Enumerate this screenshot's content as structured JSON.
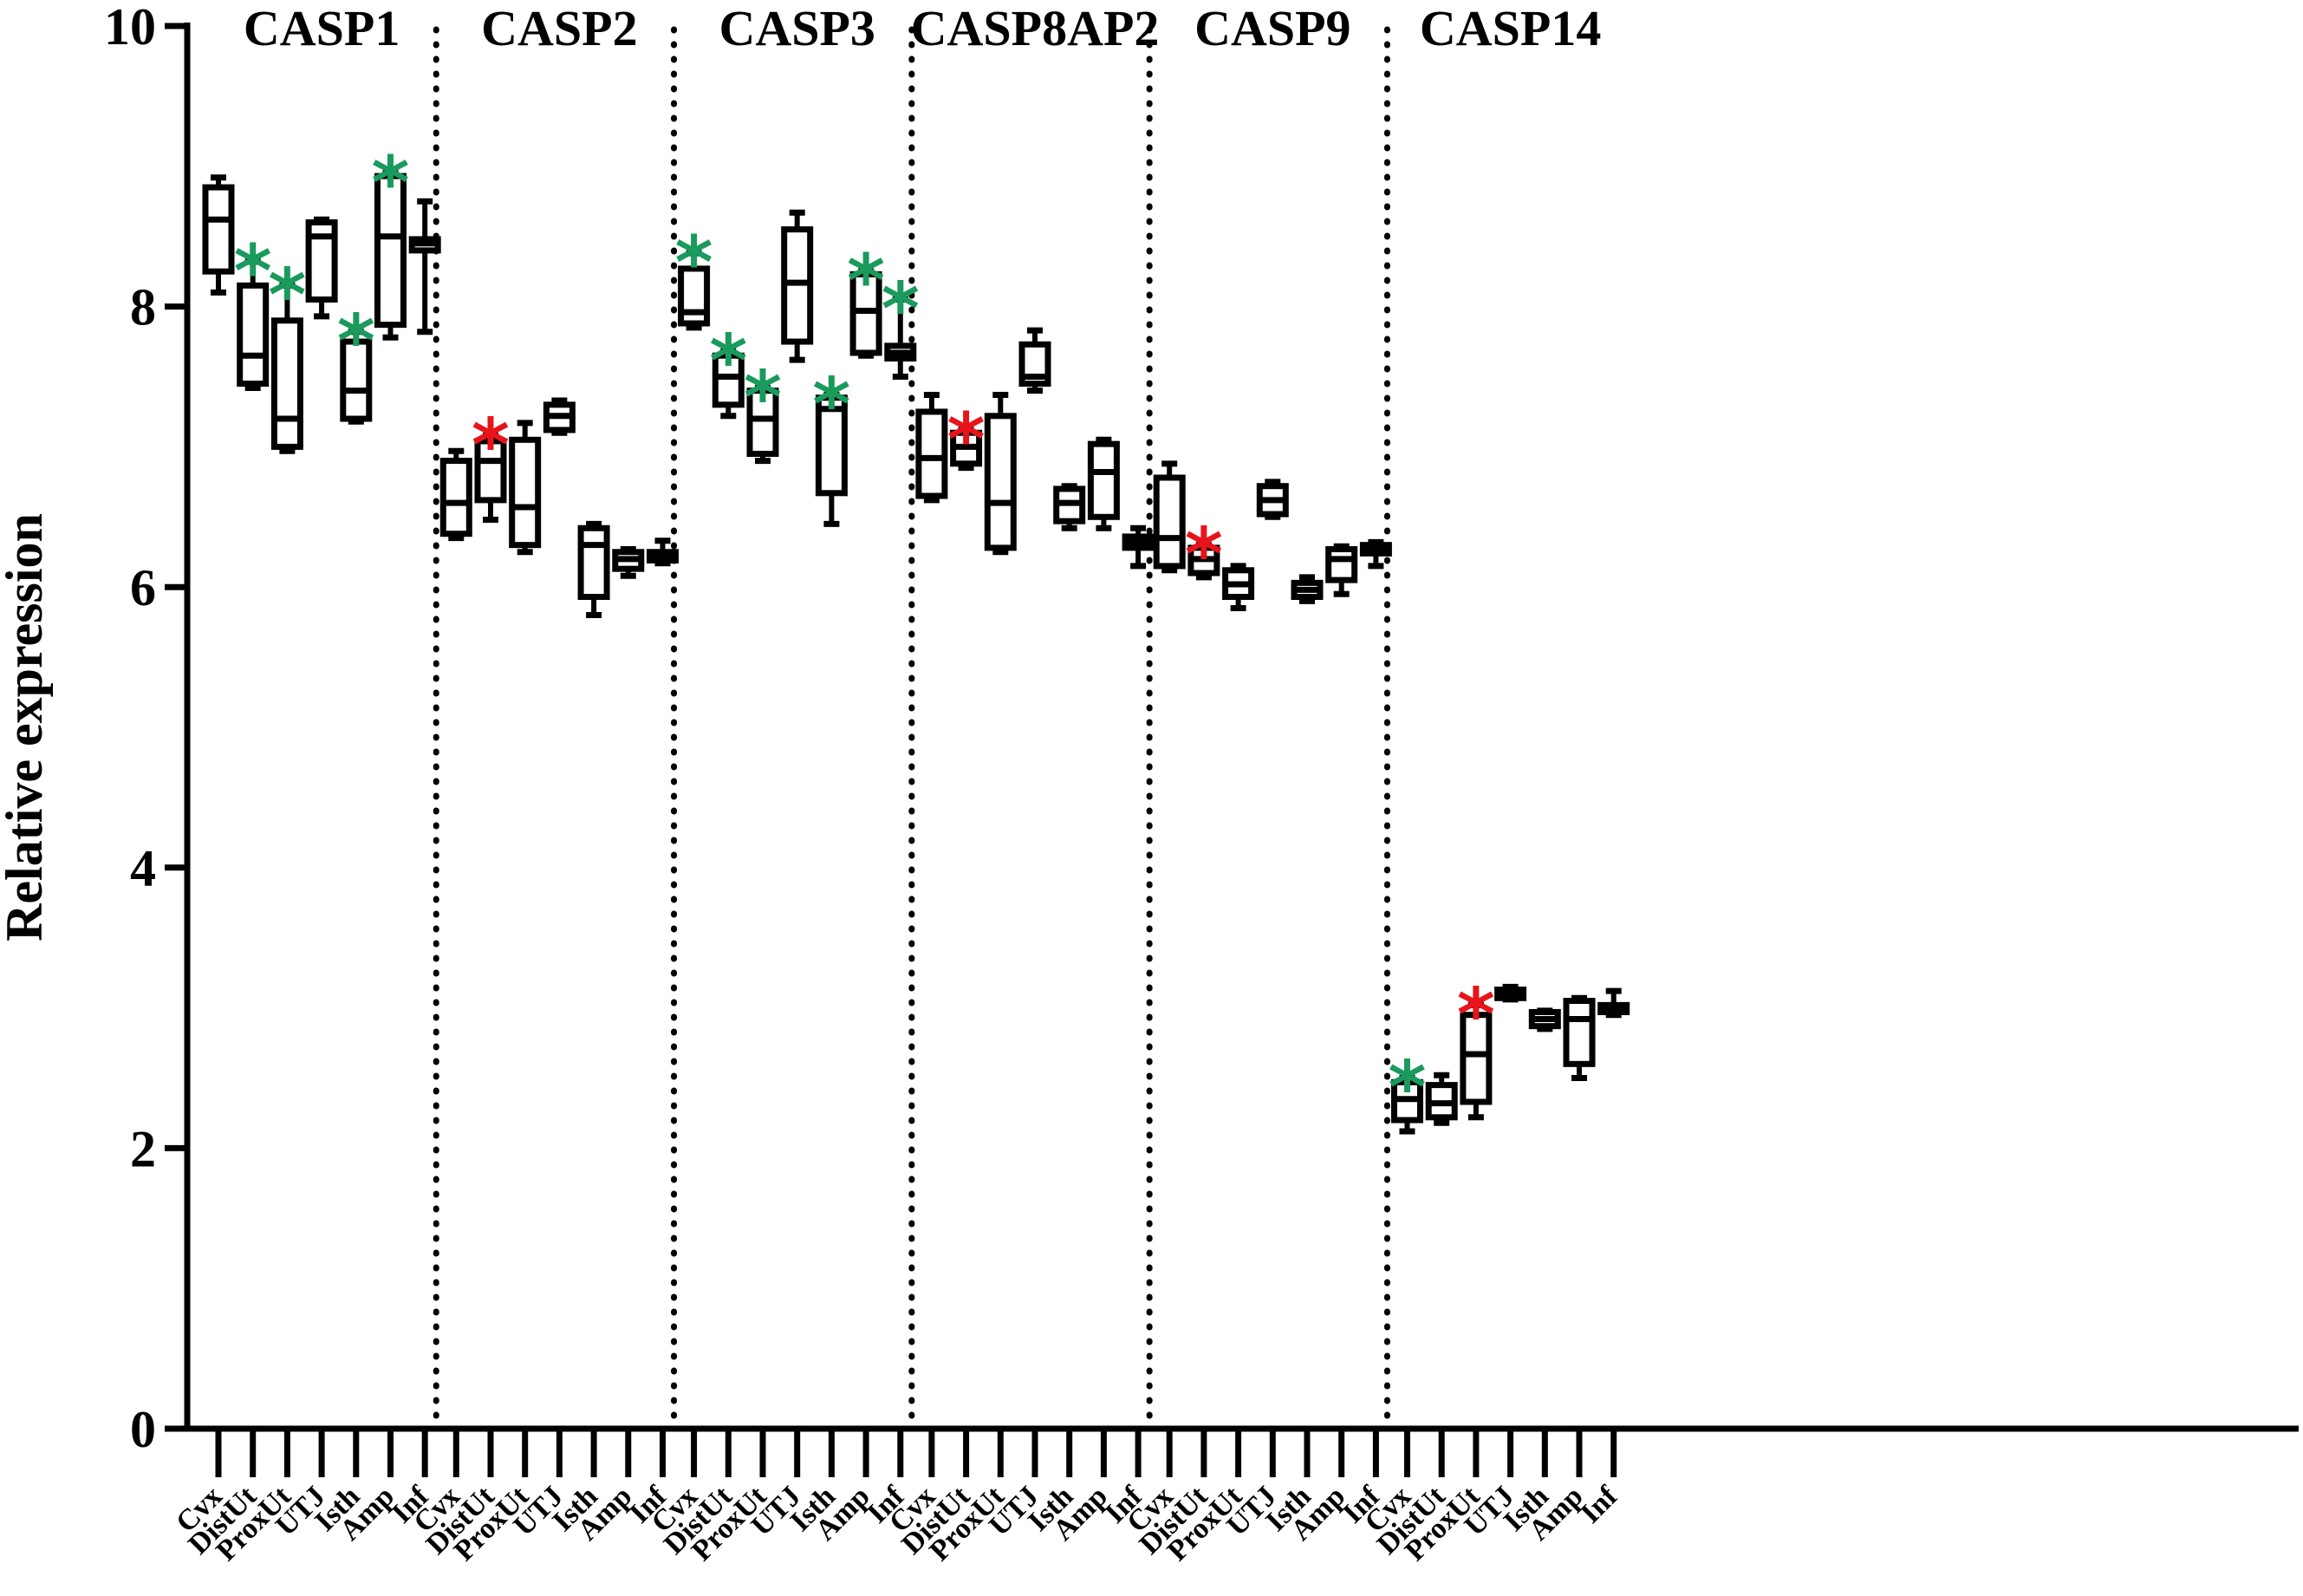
{
  "chart_data": {
    "type": "box",
    "ylabel": "Relative expression",
    "ylim": [
      0,
      10
    ],
    "yticks": [
      0,
      2,
      4,
      6,
      8,
      10
    ],
    "grid": false,
    "categories": [
      "Cvx",
      "DistUt",
      "ProxUt",
      "UTJ",
      "Isth",
      "Amp",
      "Inf"
    ],
    "colors": {
      "axis": "#000000",
      "green_star": "#1a9a5c",
      "red_star": "#e8141b"
    },
    "groups": [
      {
        "name": "CASP1",
        "boxes": [
          {
            "min": 8.1,
            "q1": 8.25,
            "median": 8.62,
            "q3": 8.85,
            "max": 8.92,
            "sig": ""
          },
          {
            "min": 7.42,
            "q1": 7.45,
            "median": 7.65,
            "q3": 8.15,
            "max": 8.32,
            "sig": "green"
          },
          {
            "min": 6.97,
            "q1": 7.0,
            "median": 7.2,
            "q3": 7.9,
            "max": 8.15,
            "sig": "green"
          },
          {
            "min": 7.93,
            "q1": 8.05,
            "median": 8.5,
            "q3": 8.6,
            "max": 8.62,
            "sig": ""
          },
          {
            "min": 7.18,
            "q1": 7.2,
            "median": 7.4,
            "q3": 7.75,
            "max": 7.82,
            "sig": "green"
          },
          {
            "min": 7.78,
            "q1": 7.87,
            "median": 8.5,
            "q3": 8.93,
            "max": 8.95,
            "sig": "green"
          },
          {
            "min": 7.82,
            "q1": 8.4,
            "median": 8.45,
            "q3": 8.48,
            "max": 8.75,
            "sig": ""
          }
        ]
      },
      {
        "name": "CASP2",
        "boxes": [
          {
            "min": 6.35,
            "q1": 6.38,
            "median": 6.6,
            "q3": 6.9,
            "max": 6.97,
            "sig": ""
          },
          {
            "min": 6.48,
            "q1": 6.62,
            "median": 6.9,
            "q3": 7.04,
            "max": 7.08,
            "sig": "red"
          },
          {
            "min": 6.25,
            "q1": 6.3,
            "median": 6.57,
            "q3": 7.05,
            "max": 7.17,
            "sig": ""
          },
          {
            "min": 7.1,
            "q1": 7.12,
            "median": 7.22,
            "q3": 7.3,
            "max": 7.33,
            "sig": ""
          },
          {
            "min": 5.8,
            "q1": 5.93,
            "median": 6.3,
            "q3": 6.42,
            "max": 6.45,
            "sig": ""
          },
          {
            "min": 6.08,
            "q1": 6.13,
            "median": 6.2,
            "q3": 6.25,
            "max": 6.27,
            "sig": ""
          },
          {
            "min": 6.17,
            "q1": 6.19,
            "median": 6.22,
            "q3": 6.25,
            "max": 6.33,
            "sig": ""
          }
        ]
      },
      {
        "name": "CASP3",
        "boxes": [
          {
            "min": 7.85,
            "q1": 7.88,
            "median": 7.96,
            "q3": 8.27,
            "max": 8.38,
            "sig": "green"
          },
          {
            "min": 7.22,
            "q1": 7.3,
            "median": 7.5,
            "q3": 7.65,
            "max": 7.68,
            "sig": "green"
          },
          {
            "min": 6.9,
            "q1": 6.95,
            "median": 7.2,
            "q3": 7.4,
            "max": 7.42,
            "sig": "green"
          },
          {
            "min": 7.62,
            "q1": 7.75,
            "median": 8.17,
            "q3": 8.55,
            "max": 8.67,
            "sig": ""
          },
          {
            "min": 6.45,
            "q1": 6.67,
            "median": 7.27,
            "q3": 7.35,
            "max": 7.37,
            "sig": "green"
          },
          {
            "min": 7.65,
            "q1": 7.67,
            "median": 7.97,
            "q3": 8.23,
            "max": 8.25,
            "sig": "green"
          },
          {
            "min": 7.5,
            "q1": 7.63,
            "median": 7.67,
            "q3": 7.72,
            "max": 8.05,
            "sig": "green"
          }
        ]
      },
      {
        "name": "CASP8AP2",
        "boxes": [
          {
            "min": 6.62,
            "q1": 6.65,
            "median": 6.92,
            "q3": 7.25,
            "max": 7.37,
            "sig": ""
          },
          {
            "min": 6.85,
            "q1": 6.88,
            "median": 7.0,
            "q3": 7.1,
            "max": 7.12,
            "sig": "red"
          },
          {
            "min": 6.25,
            "q1": 6.28,
            "median": 6.6,
            "q3": 7.22,
            "max": 7.37,
            "sig": ""
          },
          {
            "min": 7.4,
            "q1": 7.45,
            "median": 7.5,
            "q3": 7.73,
            "max": 7.83,
            "sig": ""
          },
          {
            "min": 6.42,
            "q1": 6.47,
            "median": 6.6,
            "q3": 6.7,
            "max": 6.72,
            "sig": ""
          },
          {
            "min": 6.42,
            "q1": 6.5,
            "median": 6.82,
            "q3": 7.02,
            "max": 7.05,
            "sig": ""
          },
          {
            "min": 6.15,
            "q1": 6.28,
            "median": 6.32,
            "q3": 6.36,
            "max": 6.42,
            "sig": ""
          }
        ]
      },
      {
        "name": "CASP9",
        "boxes": [
          {
            "min": 6.12,
            "q1": 6.15,
            "median": 6.35,
            "q3": 6.78,
            "max": 6.88,
            "sig": ""
          },
          {
            "min": 6.07,
            "q1": 6.1,
            "median": 6.2,
            "q3": 6.28,
            "max": 6.3,
            "sig": "red"
          },
          {
            "min": 5.85,
            "q1": 5.93,
            "median": 6.02,
            "q3": 6.12,
            "max": 6.15,
            "sig": ""
          },
          {
            "min": 6.5,
            "q1": 6.52,
            "median": 6.62,
            "q3": 6.72,
            "max": 6.75,
            "sig": ""
          },
          {
            "min": 5.9,
            "q1": 5.93,
            "median": 5.98,
            "q3": 6.03,
            "max": 6.07,
            "sig": ""
          },
          {
            "min": 5.95,
            "q1": 6.05,
            "median": 6.2,
            "q3": 6.27,
            "max": 6.29,
            "sig": ""
          },
          {
            "min": 6.15,
            "q1": 6.24,
            "median": 6.27,
            "q3": 6.3,
            "max": 6.32,
            "sig": ""
          }
        ]
      },
      {
        "name": "CASP14",
        "boxes": [
          {
            "min": 2.12,
            "q1": 2.2,
            "median": 2.35,
            "q3": 2.47,
            "max": 2.5,
            "sig": "green"
          },
          {
            "min": 2.18,
            "q1": 2.22,
            "median": 2.32,
            "q3": 2.45,
            "max": 2.52,
            "sig": ""
          },
          {
            "min": 2.22,
            "q1": 2.33,
            "median": 2.67,
            "q3": 2.95,
            "max": 3.02,
            "sig": "red"
          },
          {
            "min": 3.06,
            "q1": 3.07,
            "median": 3.1,
            "q3": 3.13,
            "max": 3.15,
            "sig": ""
          },
          {
            "min": 2.85,
            "q1": 2.87,
            "median": 2.92,
            "q3": 2.97,
            "max": 2.98,
            "sig": ""
          },
          {
            "min": 2.5,
            "q1": 2.6,
            "median": 2.92,
            "q3": 3.05,
            "max": 3.07,
            "sig": ""
          },
          {
            "min": 2.95,
            "q1": 2.97,
            "median": 2.99,
            "q3": 3.02,
            "max": 3.12,
            "sig": ""
          }
        ]
      }
    ]
  }
}
